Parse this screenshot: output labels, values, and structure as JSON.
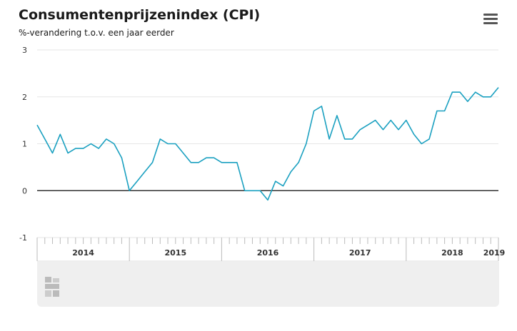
{
  "header": {
    "title": "Consumentenprijzenindex (CPI)",
    "subtitle": "%-verandering t.o.v. een jaar eerder",
    "menu_icon": "hamburger-menu-icon"
  },
  "colors": {
    "line": "#1aa0c0",
    "zero_line": "#333333",
    "grid": "#e6e6e6",
    "panel": "#efefef"
  },
  "chart_data": {
    "type": "line",
    "title": "Consumentenprijzenindex (CPI)",
    "ylabel": "%-verandering t.o.v. een jaar eerder",
    "xlabel": "",
    "ylim": [
      -1,
      3
    ],
    "yticks": [
      "-1",
      "0",
      "1",
      "2",
      "3"
    ],
    "xlim": [
      "2014-01",
      "2019-01"
    ],
    "year_labels": [
      "2014",
      "2015",
      "2016",
      "2017",
      "2018",
      "2019"
    ],
    "grid": true,
    "legend": "none",
    "series": [
      {
        "x": [
          "2014-01",
          "2014-02",
          "2014-03",
          "2014-04",
          "2014-05",
          "2014-06",
          "2014-07",
          "2014-08",
          "2014-09",
          "2014-10",
          "2014-11",
          "2014-12",
          "2015-01",
          "2015-02",
          "2015-03",
          "2015-04",
          "2015-05",
          "2015-06",
          "2015-07",
          "2015-08",
          "2015-09",
          "2015-10",
          "2015-11",
          "2015-12",
          "2016-01",
          "2016-02",
          "2016-03",
          "2016-04",
          "2016-05",
          "2016-06",
          "2016-07",
          "2016-08",
          "2016-09",
          "2016-10",
          "2016-11",
          "2016-12",
          "2017-01",
          "2017-02",
          "2017-03",
          "2017-04",
          "2017-05",
          "2017-06",
          "2017-07",
          "2017-08",
          "2017-09",
          "2017-10",
          "2017-11",
          "2017-12",
          "2018-01",
          "2018-02",
          "2018-03",
          "2018-04",
          "2018-05",
          "2018-06",
          "2018-07",
          "2018-08",
          "2018-09",
          "2018-10",
          "2018-11",
          "2018-12",
          "2019-01"
        ],
        "values": [
          1.4,
          1.1,
          0.8,
          1.2,
          0.8,
          0.9,
          0.9,
          1.0,
          0.9,
          1.1,
          1.0,
          0.7,
          0.0,
          0.2,
          0.4,
          0.6,
          1.1,
          1.0,
          1.0,
          0.8,
          0.6,
          0.6,
          0.7,
          0.7,
          0.6,
          0.6,
          0.6,
          0.0,
          0.0,
          0.0,
          -0.2,
          0.2,
          0.1,
          0.4,
          0.6,
          1.0,
          1.7,
          1.8,
          1.1,
          1.6,
          1.1,
          1.1,
          1.3,
          1.4,
          1.5,
          1.3,
          1.5,
          1.3,
          1.5,
          1.2,
          1.0,
          1.1,
          1.7,
          1.7,
          2.1,
          2.1,
          1.9,
          2.1,
          2.0,
          2.0,
          2.2
        ]
      }
    ]
  }
}
